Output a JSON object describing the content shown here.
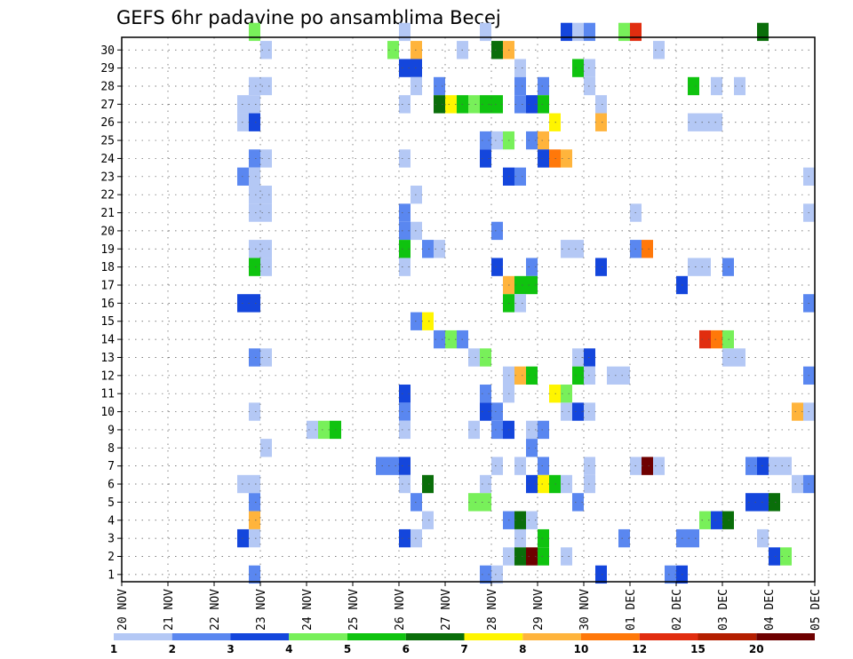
{
  "chart_data": {
    "type": "heatmap",
    "title": "GEFS 6hr padavine po ansamblima Becej",
    "xlabel": "",
    "ylabel": "",
    "x_tick_labels": [
      "20 NOV",
      "21 NOV",
      "22 NOV",
      "23 NOV",
      "24 NOV",
      "25 NOV",
      "26 NOV",
      "27 NOV",
      "28 NOV",
      "29 NOV",
      "30 NOV",
      "01 DEC",
      "02 DEC",
      "03 DEC",
      "04 DEC",
      "05 DEC"
    ],
    "xlim_days": [
      0,
      15
    ],
    "y_tick_labels": [
      "1",
      "2",
      "3",
      "4",
      "5",
      "6",
      "7",
      "8",
      "9",
      "10",
      "11",
      "12",
      "13",
      "14",
      "15",
      "16",
      "17",
      "18",
      "19",
      "20",
      "21",
      "22",
      "23",
      "24",
      "25",
      "26",
      "27",
      "28",
      "29",
      "30"
    ],
    "ylim": [
      0,
      30
    ],
    "grid": true,
    "colorbar": {
      "position": "bottom",
      "labels": [
        "1",
        "2",
        "3",
        "4",
        "5",
        "6",
        "7",
        "8",
        "10",
        "12",
        "15",
        "20"
      ],
      "colors": [
        "#b4c8f5",
        "#5a87f0",
        "#1446dc",
        "#1446dc",
        "#78f05a",
        "#0fc30f",
        "#0a6e0a",
        "#fff500",
        "#ffb43c",
        "#ff780a",
        "#e12d0f",
        "#6e0000"
      ]
    },
    "color_scale": {
      "1": "#b4c8f5",
      "2": "#5a87f0",
      "3": "#1446dc",
      "4": "#78f05a",
      "5": "#0fc30f",
      "6": "#0a6e0a",
      "7": "#fff500",
      "8": "#ffb43c",
      "10": "#ff780a",
      "12": "#e12d0f",
      "15": "#b41e00",
      "20": "#6e0000"
    },
    "cells_note": "each cell: [member, day_offset_from_20_NOV, precipitation_mm]",
    "cells": [
      [
        30,
        2.75,
        4
      ],
      [
        30,
        6.0,
        1
      ],
      [
        30,
        7.75,
        1
      ],
      [
        30,
        9.5,
        3
      ],
      [
        30,
        9.75,
        1
      ],
      [
        30,
        10.0,
        2
      ],
      [
        30,
        10.75,
        4
      ],
      [
        30,
        11.0,
        12
      ],
      [
        30,
        13.75,
        6
      ],
      [
        29,
        3.0,
        1
      ],
      [
        29,
        5.75,
        4
      ],
      [
        29,
        6.25,
        8
      ],
      [
        29,
        7.25,
        1
      ],
      [
        29,
        8.0,
        6
      ],
      [
        29,
        8.25,
        8
      ],
      [
        29,
        11.5,
        1
      ],
      [
        28,
        6.0,
        3
      ],
      [
        28,
        6.25,
        3
      ],
      [
        28,
        8.5,
        1
      ],
      [
        28,
        9.75,
        5
      ],
      [
        28,
        10.0,
        1
      ],
      [
        27,
        2.75,
        1
      ],
      [
        27,
        3.0,
        1
      ],
      [
        27,
        6.25,
        1
      ],
      [
        27,
        6.75,
        2
      ],
      [
        27,
        8.5,
        2
      ],
      [
        27,
        9.0,
        2
      ],
      [
        27,
        10.0,
        1
      ],
      [
        27,
        12.25,
        5
      ],
      [
        27,
        12.75,
        1
      ],
      [
        27,
        13.25,
        1
      ],
      [
        26,
        2.5,
        1
      ],
      [
        26,
        2.75,
        1
      ],
      [
        26,
        6.0,
        1
      ],
      [
        26,
        6.75,
        6
      ],
      [
        26,
        7.0,
        7
      ],
      [
        26,
        7.25,
        5
      ],
      [
        26,
        7.5,
        4
      ],
      [
        26,
        7.75,
        5
      ],
      [
        26,
        8.0,
        5
      ],
      [
        26,
        8.5,
        2
      ],
      [
        26,
        8.75,
        3
      ],
      [
        26,
        9.0,
        5
      ],
      [
        26,
        10.25,
        1
      ],
      [
        25,
        2.5,
        1
      ],
      [
        25,
        2.75,
        3
      ],
      [
        25,
        9.25,
        7
      ],
      [
        25,
        10.25,
        8
      ],
      [
        25,
        12.25,
        1
      ],
      [
        25,
        12.5,
        1
      ],
      [
        25,
        12.75,
        1
      ],
      [
        24,
        7.75,
        2
      ],
      [
        24,
        8.0,
        1
      ],
      [
        24,
        8.25,
        4
      ],
      [
        24,
        8.75,
        2
      ],
      [
        24,
        9.0,
        8
      ],
      [
        23,
        2.75,
        2
      ],
      [
        23,
        3.0,
        1
      ],
      [
        23,
        6.0,
        1
      ],
      [
        23,
        7.75,
        3
      ],
      [
        23,
        9.0,
        3
      ],
      [
        23,
        9.25,
        10
      ],
      [
        23,
        9.5,
        8
      ],
      [
        22,
        2.5,
        2
      ],
      [
        22,
        2.75,
        1
      ],
      [
        22,
        8.25,
        3
      ],
      [
        22,
        8.5,
        2
      ],
      [
        22,
        14.75,
        1
      ],
      [
        21,
        2.75,
        1
      ],
      [
        21,
        3.0,
        1
      ],
      [
        21,
        6.25,
        1
      ],
      [
        20,
        2.75,
        1
      ],
      [
        20,
        3.0,
        1
      ],
      [
        20,
        6.0,
        2
      ],
      [
        20,
        11.0,
        1
      ],
      [
        20,
        14.75,
        1
      ],
      [
        19,
        6.0,
        2
      ],
      [
        19,
        6.25,
        1
      ],
      [
        19,
        8.0,
        2
      ],
      [
        18,
        2.75,
        1
      ],
      [
        18,
        3.0,
        1
      ],
      [
        18,
        6.0,
        5
      ],
      [
        18,
        6.5,
        2
      ],
      [
        18,
        6.75,
        1
      ],
      [
        18,
        9.5,
        1
      ],
      [
        18,
        9.75,
        1
      ],
      [
        18,
        11.0,
        2
      ],
      [
        18,
        11.25,
        10
      ],
      [
        17,
        2.75,
        5
      ],
      [
        17,
        3.0,
        1
      ],
      [
        17,
        6.0,
        1
      ],
      [
        17,
        8.0,
        3
      ],
      [
        17,
        8.75,
        2
      ],
      [
        17,
        10.25,
        3
      ],
      [
        17,
        12.25,
        1
      ],
      [
        17,
        12.5,
        1
      ],
      [
        17,
        13.0,
        2
      ],
      [
        16,
        8.25,
        8
      ],
      [
        16,
        8.5,
        5
      ],
      [
        16,
        8.75,
        5
      ],
      [
        16,
        12.0,
        3
      ],
      [
        15,
        2.5,
        3
      ],
      [
        15,
        2.75,
        3
      ],
      [
        15,
        8.25,
        5
      ],
      [
        15,
        8.5,
        1
      ],
      [
        15,
        14.75,
        2
      ],
      [
        14,
        6.25,
        2
      ],
      [
        14,
        6.5,
        7
      ],
      [
        13,
        6.75,
        2
      ],
      [
        13,
        7.0,
        4
      ],
      [
        13,
        7.25,
        2
      ],
      [
        13,
        12.5,
        12
      ],
      [
        13,
        12.75,
        10
      ],
      [
        13,
        13.0,
        4
      ],
      [
        12,
        2.75,
        2
      ],
      [
        12,
        3.0,
        1
      ],
      [
        12,
        7.5,
        1
      ],
      [
        12,
        7.75,
        4
      ],
      [
        12,
        9.75,
        1
      ],
      [
        12,
        10.0,
        3
      ],
      [
        12,
        13.0,
        1
      ],
      [
        12,
        13.25,
        1
      ],
      [
        11,
        8.25,
        1
      ],
      [
        11,
        8.5,
        8
      ],
      [
        11,
        8.75,
        5
      ],
      [
        11,
        9.75,
        5
      ],
      [
        11,
        10.0,
        1
      ],
      [
        11,
        10.5,
        1
      ],
      [
        11,
        10.75,
        1
      ],
      [
        11,
        14.75,
        2
      ],
      [
        10,
        6.0,
        3
      ],
      [
        10,
        7.75,
        2
      ],
      [
        10,
        8.25,
        1
      ],
      [
        10,
        9.25,
        7
      ],
      [
        10,
        9.5,
        4
      ],
      [
        9,
        2.75,
        1
      ],
      [
        9,
        6.0,
        2
      ],
      [
        9,
        7.75,
        3
      ],
      [
        9,
        8.0,
        2
      ],
      [
        9,
        9.5,
        1
      ],
      [
        9,
        9.75,
        3
      ],
      [
        9,
        10.0,
        1
      ],
      [
        9,
        14.5,
        8
      ],
      [
        9,
        14.75,
        1
      ],
      [
        8,
        4.0,
        1
      ],
      [
        8,
        4.25,
        4
      ],
      [
        8,
        4.5,
        5
      ],
      [
        8,
        6.0,
        1
      ],
      [
        8,
        7.5,
        1
      ],
      [
        8,
        8.0,
        2
      ],
      [
        8,
        8.25,
        3
      ],
      [
        8,
        8.75,
        1
      ],
      [
        8,
        9.0,
        2
      ],
      [
        7,
        3.0,
        1
      ],
      [
        7,
        8.75,
        2
      ],
      [
        6,
        5.5,
        2
      ],
      [
        6,
        5.75,
        2
      ],
      [
        6,
        6.0,
        3
      ],
      [
        6,
        8.0,
        1
      ],
      [
        6,
        8.5,
        1
      ],
      [
        6,
        9.0,
        2
      ],
      [
        6,
        10.0,
        1
      ],
      [
        6,
        11.0,
        1
      ],
      [
        6,
        11.25,
        20
      ],
      [
        6,
        11.5,
        1
      ],
      [
        6,
        13.5,
        2
      ],
      [
        6,
        13.75,
        3
      ],
      [
        6,
        14.0,
        1
      ],
      [
        6,
        14.25,
        1
      ],
      [
        5,
        2.5,
        1
      ],
      [
        5,
        2.75,
        1
      ],
      [
        5,
        6.0,
        1
      ],
      [
        5,
        6.5,
        6
      ],
      [
        5,
        7.75,
        1
      ],
      [
        5,
        8.75,
        3
      ],
      [
        5,
        9.0,
        7
      ],
      [
        5,
        9.25,
        5
      ],
      [
        5,
        9.5,
        1
      ],
      [
        5,
        10.0,
        1
      ],
      [
        5,
        14.5,
        1
      ],
      [
        5,
        14.75,
        2
      ],
      [
        4,
        2.75,
        2
      ],
      [
        4,
        6.25,
        2
      ],
      [
        4,
        7.5,
        4
      ],
      [
        4,
        7.75,
        4
      ],
      [
        4,
        9.75,
        2
      ],
      [
        4,
        13.5,
        3
      ],
      [
        4,
        13.75,
        3
      ],
      [
        4,
        14.0,
        6
      ],
      [
        3,
        2.75,
        8
      ],
      [
        3,
        6.5,
        1
      ],
      [
        3,
        8.25,
        2
      ],
      [
        3,
        8.5,
        6
      ],
      [
        3,
        8.75,
        1
      ],
      [
        3,
        12.5,
        4
      ],
      [
        3,
        12.75,
        3
      ],
      [
        3,
        13.0,
        6
      ],
      [
        2,
        2.5,
        3
      ],
      [
        2,
        2.75,
        1
      ],
      [
        2,
        6.0,
        3
      ],
      [
        2,
        6.25,
        1
      ],
      [
        2,
        8.5,
        1
      ],
      [
        2,
        9.0,
        5
      ],
      [
        2,
        10.75,
        2
      ],
      [
        2,
        12.0,
        2
      ],
      [
        2,
        12.25,
        2
      ],
      [
        2,
        13.75,
        1
      ],
      [
        1,
        8.25,
        1
      ],
      [
        1,
        8.5,
        6
      ],
      [
        1,
        8.75,
        20
      ],
      [
        1,
        9.0,
        5
      ],
      [
        1,
        9.5,
        1
      ],
      [
        1,
        14.0,
        3
      ],
      [
        1,
        14.25,
        4
      ],
      [
        0,
        2.75,
        2
      ],
      [
        0,
        7.75,
        2
      ],
      [
        0,
        8.0,
        1
      ],
      [
        0,
        10.25,
        3
      ],
      [
        0,
        11.75,
        2
      ],
      [
        0,
        12.0,
        3
      ]
    ]
  }
}
